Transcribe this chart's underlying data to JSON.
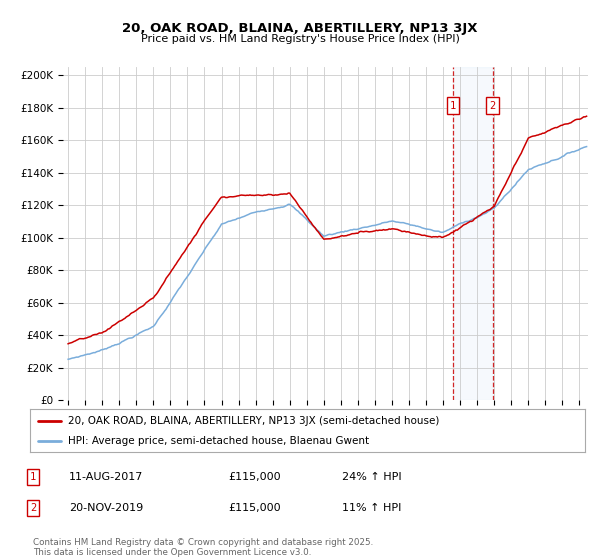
{
  "title": "20, OAK ROAD, BLAINA, ABERTILLERY, NP13 3JX",
  "subtitle": "Price paid vs. HM Land Registry's House Price Index (HPI)",
  "ylabel_ticks": [
    "£0",
    "£20K",
    "£40K",
    "£60K",
    "£80K",
    "£100K",
    "£120K",
    "£140K",
    "£160K",
    "£180K",
    "£200K"
  ],
  "ytick_vals": [
    0,
    20000,
    40000,
    60000,
    80000,
    100000,
    120000,
    140000,
    160000,
    180000,
    200000
  ],
  "ylim": [
    0,
    205000
  ],
  "xlim_start": 1994.7,
  "xlim_end": 2025.5,
  "red_color": "#cc0000",
  "blue_color": "#7aaddb",
  "marker1_date": 2017.58,
  "marker2_date": 2019.9,
  "marker1_label": "1",
  "marker2_label": "2",
  "legend_line1": "20, OAK ROAD, BLAINA, ABERTILLERY, NP13 3JX (semi-detached house)",
  "legend_line2": "HPI: Average price, semi-detached house, Blaenau Gwent",
  "table_row1": [
    "1",
    "11-AUG-2017",
    "£115,000",
    "24% ↑ HPI"
  ],
  "table_row2": [
    "2",
    "20-NOV-2019",
    "£115,000",
    "11% ↑ HPI"
  ],
  "footer": "Contains HM Land Registry data © Crown copyright and database right 2025.\nThis data is licensed under the Open Government Licence v3.0.",
  "background_color": "#ffffff",
  "grid_color": "#cccccc"
}
